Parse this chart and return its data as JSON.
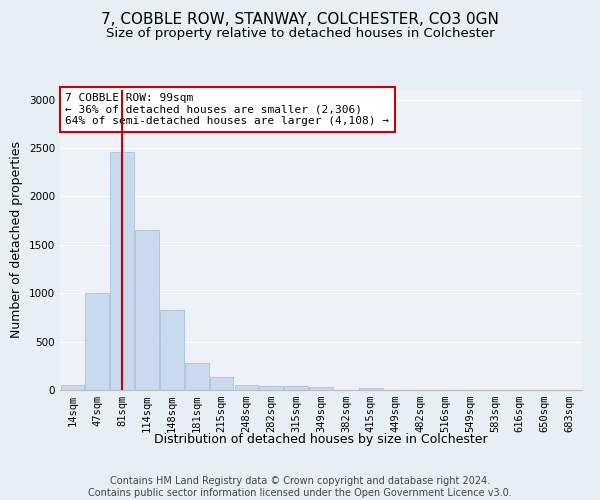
{
  "title": "7, COBBLE ROW, STANWAY, COLCHESTER, CO3 0GN",
  "subtitle": "Size of property relative to detached houses in Colchester",
  "xlabel": "Distribution of detached houses by size in Colchester",
  "ylabel": "Number of detached properties",
  "bar_labels": [
    "14sqm",
    "47sqm",
    "81sqm",
    "114sqm",
    "148sqm",
    "181sqm",
    "215sqm",
    "248sqm",
    "282sqm",
    "315sqm",
    "349sqm",
    "382sqm",
    "415sqm",
    "449sqm",
    "482sqm",
    "516sqm",
    "549sqm",
    "583sqm",
    "616sqm",
    "650sqm",
    "683sqm"
  ],
  "bar_values": [
    55,
    1000,
    2460,
    1650,
    830,
    280,
    130,
    55,
    45,
    40,
    30,
    0,
    25,
    0,
    0,
    0,
    0,
    0,
    0,
    0,
    0
  ],
  "bar_color": "#c9d9ee",
  "bar_edgecolor": "#a0b8d8",
  "vline_x": 2,
  "vline_color": "#cc0000",
  "ylim": [
    0,
    3100
  ],
  "yticks": [
    0,
    500,
    1000,
    1500,
    2000,
    2500,
    3000
  ],
  "annotation_text": "7 COBBLE ROW: 99sqm\n← 36% of detached houses are smaller (2,306)\n64% of semi-detached houses are larger (4,108) →",
  "annotation_box_color": "#ffffff",
  "annotation_box_edgecolor": "#cc0000",
  "footer_line1": "Contains HM Land Registry data © Crown copyright and database right 2024.",
  "footer_line2": "Contains public sector information licensed under the Open Government Licence v3.0.",
  "background_color": "#e8eef5",
  "plot_background_color": "#eef2f8",
  "grid_color": "#ffffff",
  "title_fontsize": 11,
  "subtitle_fontsize": 9.5,
  "axis_label_fontsize": 9,
  "tick_fontsize": 7.5,
  "annotation_fontsize": 8,
  "footer_fontsize": 7
}
